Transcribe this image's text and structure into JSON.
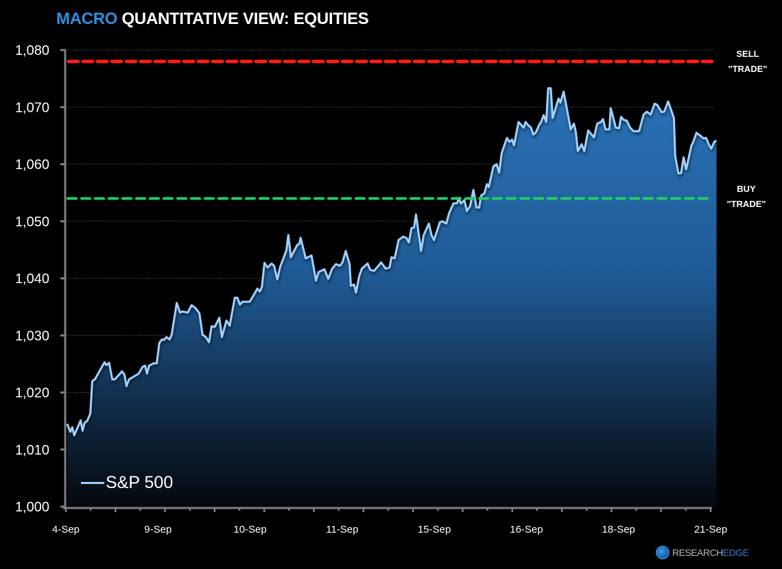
{
  "title": {
    "accent": "MACRO",
    "rest": " QUANTITATIVE VIEW: EQUITIES"
  },
  "labels": {
    "sell_line1": "SELL",
    "sell_line2": "\"TRADE\"",
    "buy_line1": "BUY",
    "buy_line2": "\"TRADE\""
  },
  "legend": {
    "series_name": "S&P 500"
  },
  "logo": {
    "part1": "RESEARCH",
    "part2": "EDGE"
  },
  "colors": {
    "background": "#000000",
    "line": "#9fd0ff",
    "area_top": "#2a72b8",
    "area_bottom": "#05080d",
    "sell_line": "#ff1a1a",
    "buy_line": "#22cc66",
    "axis": "#808080",
    "accent": "#2f8fe0"
  },
  "chart_data": {
    "type": "area",
    "title": "MACRO QUANTITATIVE VIEW: EQUITIES",
    "xlabel": "",
    "ylabel": "",
    "ylim": [
      1000,
      1080
    ],
    "yticks": [
      1000,
      1010,
      1020,
      1030,
      1040,
      1050,
      1060,
      1070,
      1080
    ],
    "ytick_labels": [
      "1,000",
      "1,010",
      "1,020",
      "1,030",
      "1,040",
      "1,050",
      "1,060",
      "1,070",
      "1,080"
    ],
    "x_tick_labels": [
      "4-Sep",
      "9-Sep",
      "10-Sep",
      "11-Sep",
      "15-Sep",
      "16-Sep",
      "18-Sep",
      "21-Sep"
    ],
    "grid": "horizontal dotted",
    "legend_position": "bottom-left",
    "reference_lines": [
      {
        "name": "SELL \"TRADE\"",
        "value": 1078,
        "style": "dashed",
        "color": "#ff1a1a"
      },
      {
        "name": "BUY \"TRADE\"",
        "value": 1054,
        "style": "dashed",
        "color": "#22cc66"
      }
    ],
    "series": [
      {
        "name": "S&P 500",
        "x_pixel_positions_note": "x is fraction of time axis (0 = 4-Sep, 1 = 21-Sep)",
        "points": [
          [
            0.002,
            1014.5
          ],
          [
            0.007,
            1013.1
          ],
          [
            0.01,
            1013.9
          ],
          [
            0.013,
            1012.5
          ],
          [
            0.023,
            1015.1
          ],
          [
            0.026,
            1013.3
          ],
          [
            0.029,
            1014.7
          ],
          [
            0.033,
            1015.0
          ],
          [
            0.038,
            1016.3
          ],
          [
            0.041,
            1022.0
          ],
          [
            0.045,
            1022.3
          ],
          [
            0.05,
            1023.3
          ],
          [
            0.06,
            1025.3
          ],
          [
            0.063,
            1024.8
          ],
          [
            0.067,
            1025.2
          ],
          [
            0.072,
            1022.3
          ],
          [
            0.076,
            1022.3
          ],
          [
            0.087,
            1023.7
          ],
          [
            0.091,
            1023.1
          ],
          [
            0.094,
            1021.1
          ],
          [
            0.098,
            1022.3
          ],
          [
            0.113,
            1023.3
          ],
          [
            0.119,
            1024.5
          ],
          [
            0.123,
            1024.7
          ],
          [
            0.126,
            1023.3
          ],
          [
            0.129,
            1024.7
          ],
          [
            0.136,
            1025.1
          ],
          [
            0.141,
            1025.1
          ],
          [
            0.145,
            1028.7
          ],
          [
            0.149,
            1029.3
          ],
          [
            0.152,
            1029.2
          ],
          [
            0.156,
            1029.7
          ],
          [
            0.161,
            1029.3
          ],
          [
            0.164,
            1030.1
          ],
          [
            0.172,
            1035.7
          ],
          [
            0.177,
            1034.0
          ],
          [
            0.181,
            1034.2
          ],
          [
            0.189,
            1034.0
          ],
          [
            0.195,
            1035.3
          ],
          [
            0.201,
            1034.8
          ],
          [
            0.207,
            1033.9
          ],
          [
            0.212,
            1030.1
          ],
          [
            0.217,
            1029.7
          ],
          [
            0.222,
            1028.8
          ],
          [
            0.226,
            1031.6
          ],
          [
            0.231,
            1031.5
          ],
          [
            0.238,
            1033.1
          ],
          [
            0.242,
            1029.7
          ],
          [
            0.249,
            1032.6
          ],
          [
            0.254,
            1031.7
          ],
          [
            0.262,
            1036.6
          ],
          [
            0.266,
            1036.6
          ],
          [
            0.27,
            1035.4
          ],
          [
            0.274,
            1035.9
          ],
          [
            0.285,
            1035.9
          ],
          [
            0.29,
            1036.8
          ],
          [
            0.297,
            1038.2
          ],
          [
            0.301,
            1037.7
          ],
          [
            0.304,
            1038.5
          ],
          [
            0.308,
            1042.7
          ],
          [
            0.313,
            1041.9
          ],
          [
            0.319,
            1042.6
          ],
          [
            0.323,
            1042.2
          ],
          [
            0.328,
            1039.8
          ],
          [
            0.332,
            1041.9
          ],
          [
            0.342,
            1044.9
          ],
          [
            0.345,
            1047.6
          ],
          [
            0.349,
            1043.7
          ],
          [
            0.359,
            1045.9
          ],
          [
            0.362,
            1046.0
          ],
          [
            0.364,
            1047.1
          ],
          [
            0.372,
            1043.5
          ],
          [
            0.381,
            1044.0
          ],
          [
            0.388,
            1039.6
          ],
          [
            0.392,
            1041.1
          ],
          [
            0.401,
            1041.6
          ],
          [
            0.407,
            1039.9
          ],
          [
            0.413,
            1041.7
          ],
          [
            0.419,
            1042.5
          ],
          [
            0.425,
            1042.2
          ],
          [
            0.429,
            1042.8
          ],
          [
            0.434,
            1044.8
          ],
          [
            0.44,
            1042.5
          ],
          [
            0.442,
            1038.7
          ],
          [
            0.447,
            1038.9
          ],
          [
            0.45,
            1037.5
          ],
          [
            0.455,
            1040.4
          ],
          [
            0.459,
            1041.7
          ],
          [
            0.468,
            1042.6
          ],
          [
            0.472,
            1041.5
          ],
          [
            0.478,
            1041.3
          ],
          [
            0.489,
            1042.8
          ],
          [
            0.496,
            1041.7
          ],
          [
            0.502,
            1041.9
          ],
          [
            0.505,
            1043.7
          ],
          [
            0.51,
            1043.5
          ],
          [
            0.516,
            1046.7
          ],
          [
            0.523,
            1047.3
          ],
          [
            0.528,
            1047.1
          ],
          [
            0.532,
            1046.3
          ],
          [
            0.536,
            1048.8
          ],
          [
            0.54,
            1048.9
          ],
          [
            0.543,
            1051.2
          ],
          [
            0.551,
            1044.8
          ],
          [
            0.555,
            1047.6
          ],
          [
            0.563,
            1049.6
          ],
          [
            0.567,
            1047.6
          ],
          [
            0.571,
            1046.7
          ],
          [
            0.58,
            1049.8
          ],
          [
            0.584,
            1050.0
          ],
          [
            0.59,
            1049.6
          ],
          [
            0.594,
            1051.3
          ],
          [
            0.601,
            1053.1
          ],
          [
            0.607,
            1053.2
          ],
          [
            0.609,
            1054.1
          ],
          [
            0.613,
            1053.1
          ],
          [
            0.618,
            1053.7
          ],
          [
            0.622,
            1051.8
          ],
          [
            0.627,
            1052.7
          ],
          [
            0.632,
            1055.5
          ],
          [
            0.637,
            1052.4
          ],
          [
            0.641,
            1052.4
          ],
          [
            0.644,
            1054.5
          ],
          [
            0.649,
            1054.9
          ],
          [
            0.653,
            1056.5
          ],
          [
            0.656,
            1056.0
          ],
          [
            0.663,
            1059.6
          ],
          [
            0.668,
            1060.0
          ],
          [
            0.672,
            1058.5
          ],
          [
            0.676,
            1062.0
          ],
          [
            0.684,
            1064.6
          ],
          [
            0.688,
            1063.9
          ],
          [
            0.692,
            1064.3
          ],
          [
            0.695,
            1063.3
          ],
          [
            0.702,
            1067.4
          ],
          [
            0.71,
            1066.4
          ],
          [
            0.713,
            1067.4
          ],
          [
            0.718,
            1066.7
          ],
          [
            0.721,
            1066.5
          ],
          [
            0.725,
            1065.2
          ],
          [
            0.729,
            1065.6
          ],
          [
            0.734,
            1066.9
          ],
          [
            0.737,
            1067.4
          ],
          [
            0.741,
            1068.6
          ],
          [
            0.745,
            1067.4
          ],
          [
            0.748,
            1073.3
          ],
          [
            0.752,
            1073.3
          ],
          [
            0.755,
            1068.1
          ],
          [
            0.764,
            1071.5
          ],
          [
            0.767,
            1070.8
          ],
          [
            0.772,
            1072.7
          ],
          [
            0.783,
            1066.1
          ],
          [
            0.788,
            1067.1
          ],
          [
            0.791,
            1065.6
          ],
          [
            0.794,
            1062.3
          ],
          [
            0.8,
            1063.5
          ],
          [
            0.804,
            1062.3
          ],
          [
            0.81,
            1065.9
          ],
          [
            0.819,
            1064.7
          ],
          [
            0.824,
            1067.1
          ],
          [
            0.83,
            1067.4
          ],
          [
            0.833,
            1067.9
          ],
          [
            0.837,
            1066.1
          ],
          [
            0.843,
            1066.1
          ],
          [
            0.845,
            1069.8
          ],
          [
            0.853,
            1066.4
          ],
          [
            0.858,
            1066.3
          ],
          [
            0.861,
            1068.3
          ],
          [
            0.865,
            1067.8
          ],
          [
            0.87,
            1067.6
          ],
          [
            0.875,
            1066.4
          ],
          [
            0.88,
            1065.8
          ],
          [
            0.889,
            1065.8
          ],
          [
            0.896,
            1068.7
          ],
          [
            0.901,
            1069.2
          ],
          [
            0.907,
            1068.7
          ],
          [
            0.913,
            1070.6
          ],
          [
            0.917,
            1070.4
          ],
          [
            0.924,
            1069.1
          ],
          [
            0.928,
            1069.2
          ],
          [
            0.934,
            1071.0
          ],
          [
            0.943,
            1068.1
          ],
          [
            0.945,
            1061.4
          ],
          [
            0.95,
            1058.4
          ],
          [
            0.954,
            1058.4
          ],
          [
            0.958,
            1061.2
          ],
          [
            0.962,
            1059.1
          ],
          [
            0.97,
            1063.2
          ],
          [
            0.973,
            1063.9
          ],
          [
            0.978,
            1065.5
          ],
          [
            0.984,
            1065.0
          ],
          [
            0.989,
            1064.5
          ],
          [
            0.993,
            1064.6
          ],
          [
            0.997,
            1063.5
          ],
          [
            1.001,
            1062.7
          ],
          [
            1.006,
            1064.0
          ],
          [
            1.009,
            1064.1
          ]
        ]
      }
    ]
  }
}
